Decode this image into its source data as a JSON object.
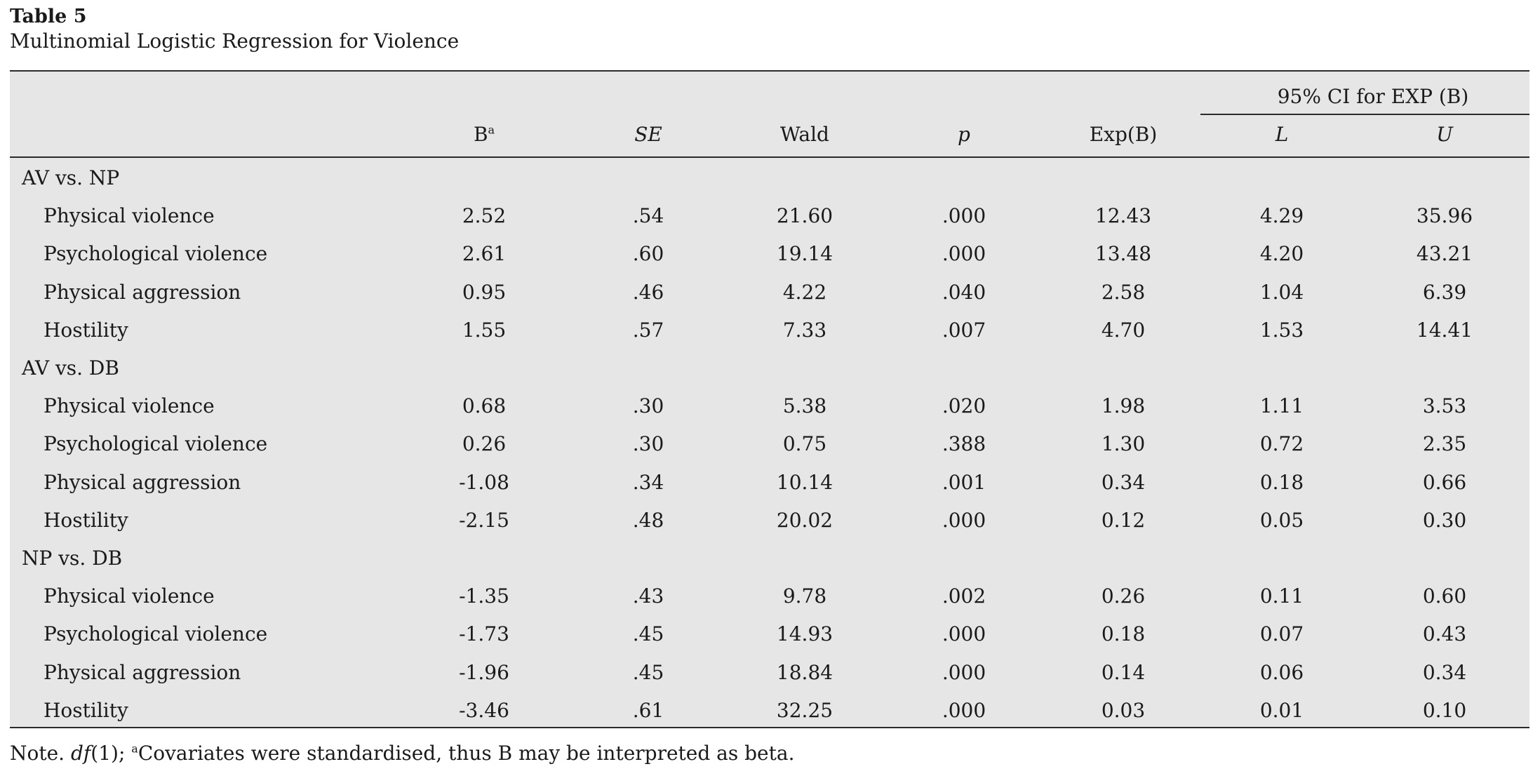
{
  "caption": {
    "label": "Table 5",
    "title": "Multinomial Logistic Regression for Violence"
  },
  "table": {
    "ci_header": "95% CI for EXP (B)",
    "columns": {
      "b": "B",
      "b_sup": "a",
      "se": "SE",
      "wald": "Wald",
      "p": "p",
      "expb": "Exp(B)",
      "lower": "L",
      "upper": "U"
    },
    "groups": [
      {
        "label": "AV vs. NP",
        "rows": [
          {
            "label": "Physical violence",
            "b": "2.52",
            "se": ".54",
            "wald": "21.60",
            "p": ".000",
            "expb": "12.43",
            "lower": "4.29",
            "upper": "35.96"
          },
          {
            "label": "Psychological violence",
            "b": "2.61",
            "se": ".60",
            "wald": "19.14",
            "p": ".000",
            "expb": "13.48",
            "lower": "4.20",
            "upper": "43.21"
          },
          {
            "label": "Physical aggression",
            "b": "0.95",
            "se": ".46",
            "wald": "4.22",
            "p": ".040",
            "expb": "2.58",
            "lower": "1.04",
            "upper": "6.39"
          },
          {
            "label": "Hostility",
            "b": "1.55",
            "se": ".57",
            "wald": "7.33",
            "p": ".007",
            "expb": "4.70",
            "lower": "1.53",
            "upper": "14.41"
          }
        ]
      },
      {
        "label": "AV vs. DB",
        "rows": [
          {
            "label": "Physical violence",
            "b": "0.68",
            "se": ".30",
            "wald": "5.38",
            "p": ".020",
            "expb": "1.98",
            "lower": "1.11",
            "upper": "3.53"
          },
          {
            "label": "Psychological violence",
            "b": "0.26",
            "se": ".30",
            "wald": "0.75",
            "p": ".388",
            "expb": "1.30",
            "lower": "0.72",
            "upper": "2.35"
          },
          {
            "label": "Physical aggression",
            "b": "-1.08",
            "se": ".34",
            "wald": "10.14",
            "p": ".001",
            "expb": "0.34",
            "lower": "0.18",
            "upper": "0.66"
          },
          {
            "label": "Hostility",
            "b": "-2.15",
            "se": ".48",
            "wald": "20.02",
            "p": ".000",
            "expb": "0.12",
            "lower": "0.05",
            "upper": "0.30"
          }
        ]
      },
      {
        "label": "NP vs. DB",
        "rows": [
          {
            "label": "Physical violence",
            "b": "-1.35",
            "se": ".43",
            "wald": "9.78",
            "p": ".002",
            "expb": "0.26",
            "lower": "0.11",
            "upper": "0.60"
          },
          {
            "label": "Psychological violence",
            "b": "-1.73",
            "se": ".45",
            "wald": "14.93",
            "p": ".000",
            "expb": "0.18",
            "lower": "0.07",
            "upper": "0.43"
          },
          {
            "label": "Physical aggression",
            "b": "-1.96",
            "se": ".45",
            "wald": "18.84",
            "p": ".000",
            "expb": "0.14",
            "lower": "0.06",
            "upper": "0.34"
          },
          {
            "label": "Hostility",
            "b": "-3.46",
            "se": ".61",
            "wald": "32.25",
            "p": ".000",
            "expb": "0.03",
            "lower": "0.01",
            "upper": "0.10"
          }
        ]
      }
    ]
  },
  "note": {
    "prefix": "Note. ",
    "df": "df",
    "df_rest": "(1); ",
    "sup": "a",
    "text": "Covariates were standardised, thus B may be interpreted as beta."
  }
}
